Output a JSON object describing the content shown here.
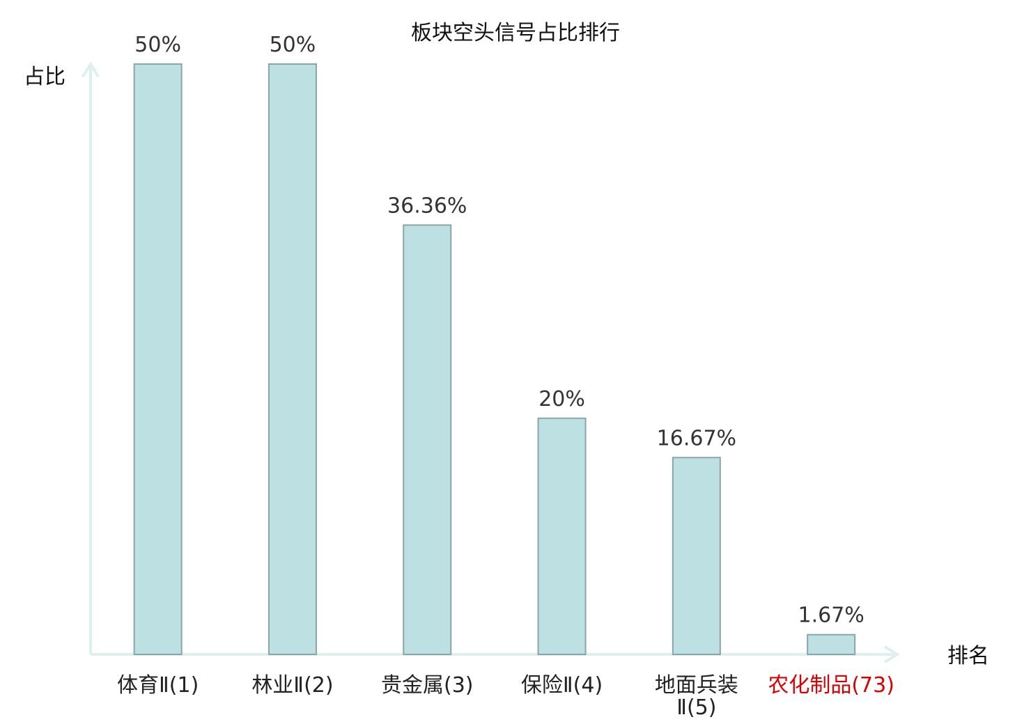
{
  "chart_data": {
    "type": "bar",
    "title": "板块空头信号占比排行",
    "xlabel": "排名",
    "ylabel": "占比",
    "ylim": [
      0,
      50
    ],
    "grid": false,
    "categories": [
      {
        "name": "体育Ⅱ",
        "rank": "(1)",
        "highlight": false
      },
      {
        "name": "林业Ⅱ",
        "rank": "(2)",
        "highlight": false
      },
      {
        "name": "贵金属",
        "rank": "(3)",
        "highlight": false
      },
      {
        "name": "保险Ⅱ",
        "rank": "(4)",
        "highlight": false
      },
      {
        "name": "地面兵装",
        "name_line2": "Ⅱ(5)",
        "rank": "",
        "highlight": false
      },
      {
        "name": "农化制品",
        "rank": "(73)",
        "highlight": true
      }
    ],
    "values": [
      50,
      50,
      36.36,
      20,
      16.67,
      1.67
    ],
    "value_labels": [
      "50%",
      "50%",
      "36.36%",
      "20%",
      "16.67%",
      "1.67%"
    ],
    "colors": {
      "bar_fill": "#bde0e3",
      "bar_stroke": "#8aa5a8",
      "axis": "#dcf0ee",
      "highlight_text": "#dd0000",
      "text": "#222222"
    }
  }
}
